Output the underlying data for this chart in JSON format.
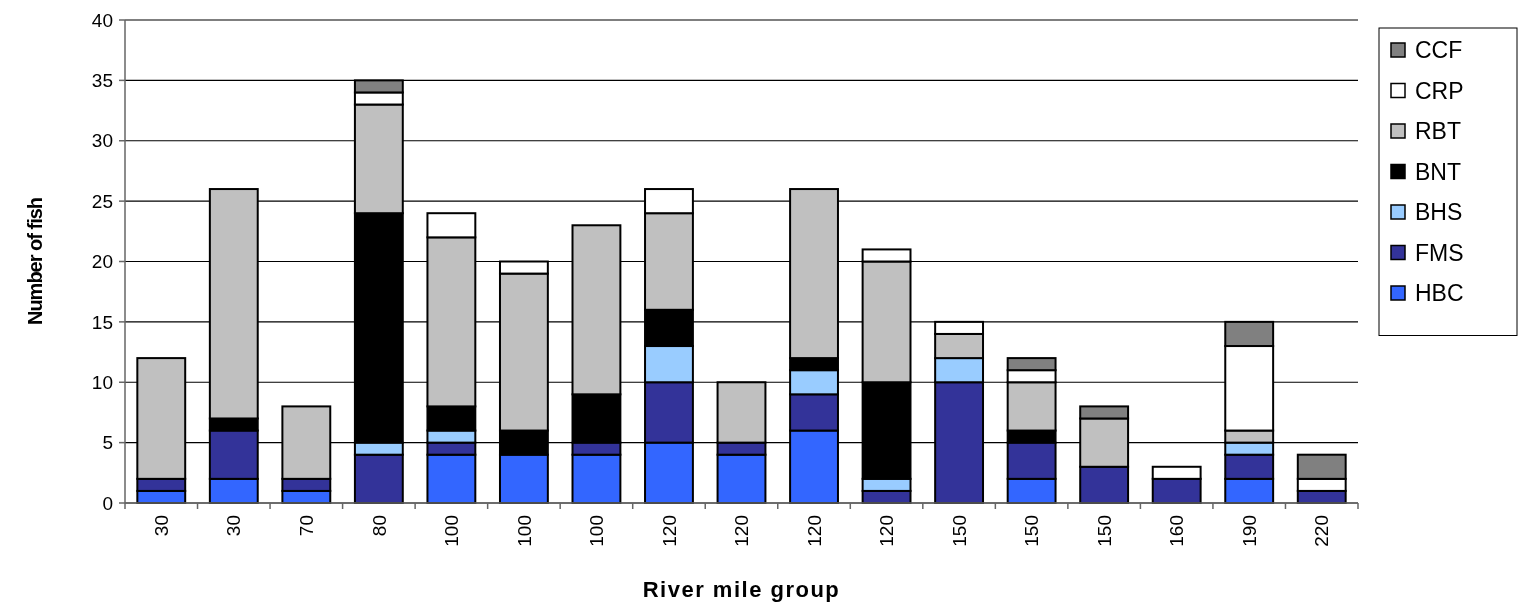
{
  "chart_data": {
    "type": "bar",
    "stacked": true,
    "xlabel": "River mile group",
    "ylabel": "Number of fish",
    "categories": [
      "30",
      "30",
      "70",
      "80",
      "100",
      "100",
      "100",
      "120",
      "120",
      "120",
      "120",
      "150",
      "150",
      "150",
      "160",
      "190",
      "220"
    ],
    "series": [
      {
        "name": "HBC",
        "color": "#3366ff",
        "values": [
          1,
          2,
          1,
          0,
          4,
          4,
          4,
          5,
          4,
          6,
          0,
          0,
          2,
          0,
          0,
          2,
          0
        ]
      },
      {
        "name": "FMS",
        "color": "#333399",
        "values": [
          1,
          4,
          1,
          4,
          1,
          0,
          1,
          5,
          1,
          3,
          1,
          10,
          3,
          3,
          2,
          2,
          1
        ]
      },
      {
        "name": "BHS",
        "color": "#99ccff",
        "values": [
          0,
          0,
          0,
          1,
          1,
          0,
          0,
          3,
          0,
          2,
          1,
          2,
          0,
          0,
          0,
          1,
          0
        ]
      },
      {
        "name": "BNT",
        "color": "#000000",
        "values": [
          0,
          1,
          0,
          19,
          2,
          2,
          4,
          3,
          0,
          1,
          8,
          0,
          1,
          0,
          0,
          0,
          0
        ]
      },
      {
        "name": "RBT",
        "color": "#c0c0c0",
        "values": [
          10,
          19,
          6,
          9,
          14,
          13,
          14,
          8,
          5,
          14,
          10,
          2,
          4,
          4,
          0,
          1,
          0
        ]
      },
      {
        "name": "CRP",
        "color": "#ffffff",
        "values": [
          0,
          0,
          0,
          1,
          2,
          1,
          0,
          2,
          0,
          0,
          1,
          1,
          1,
          0,
          1,
          7,
          1
        ]
      },
      {
        "name": "CCF",
        "color": "#808080",
        "values": [
          0,
          0,
          0,
          1,
          0,
          0,
          0,
          0,
          0,
          0,
          0,
          0,
          1,
          1,
          0,
          2,
          2
        ]
      }
    ],
    "ylim": [
      0,
      40
    ],
    "yticks": [
      0,
      5,
      10,
      15,
      20,
      25,
      30,
      35,
      40
    ],
    "grid": "y",
    "legend": "right"
  }
}
